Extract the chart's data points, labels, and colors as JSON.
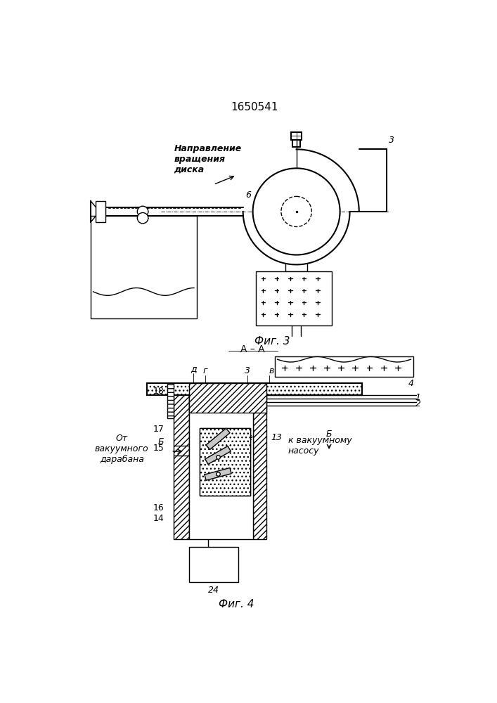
{
  "patent_number": "1650541",
  "fig3_caption": "Фиг. 3",
  "fig4_caption": "Фиг. 4",
  "section_label": "А – А",
  "direction_text": "Направление\nвращения\nдиска",
  "label_from_drum": "От\nвакуумного\nдарабана",
  "label_to_pump": "к вакуумному\nнасосу",
  "bg_color": "#ffffff",
  "line_color": "#000000"
}
